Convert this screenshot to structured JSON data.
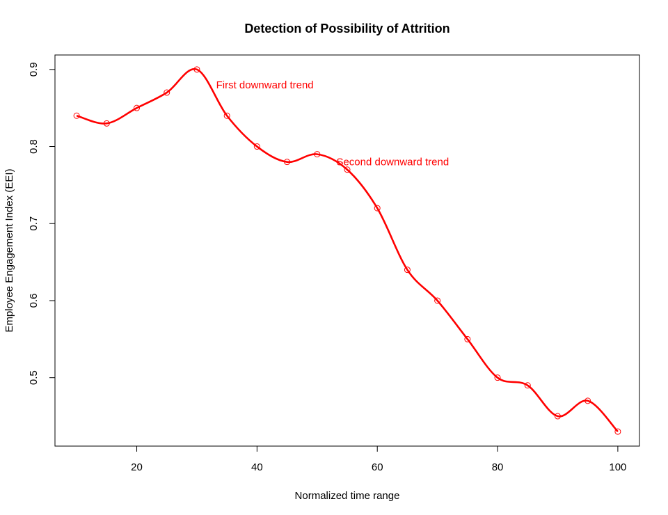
{
  "chart_data": {
    "type": "line",
    "title": "Detection of Possibility of Attrition",
    "xlabel": "Normalized time range",
    "ylabel": "Employee Engagement Index (EEI)",
    "xlim": [
      6.4,
      103.6
    ],
    "ylim": [
      0.4112,
      0.9188
    ],
    "x_ticks": [
      20,
      40,
      60,
      80,
      100
    ],
    "x_tick_labels": [
      "20",
      "40",
      "60",
      "80",
      "100"
    ],
    "y_ticks": [
      0.5,
      0.6,
      0.7,
      0.8,
      0.9
    ],
    "y_tick_labels": [
      "0.5",
      "0.6",
      "0.7",
      "0.8",
      "0.9"
    ],
    "grid": false,
    "series": [
      {
        "color": "#ff0000",
        "smooth": true,
        "markers": "open-circle",
        "x": [
          10,
          15,
          20,
          25,
          30,
          35,
          40,
          45,
          50,
          55,
          60,
          65,
          70,
          75,
          80,
          85,
          90,
          95,
          100
        ],
        "y": [
          0.84,
          0.83,
          0.85,
          0.87,
          0.9,
          0.84,
          0.8,
          0.78,
          0.79,
          0.77,
          0.72,
          0.64,
          0.6,
          0.55,
          0.5,
          0.49,
          0.45,
          0.47,
          0.43
        ]
      }
    ],
    "annotations": [
      {
        "text": "First downward trend",
        "x": 33.2,
        "y": 0.88,
        "color": "#ff0000"
      },
      {
        "text": "Second downward trend",
        "x": 53.2,
        "y": 0.78,
        "color": "#ff0000"
      }
    ]
  }
}
